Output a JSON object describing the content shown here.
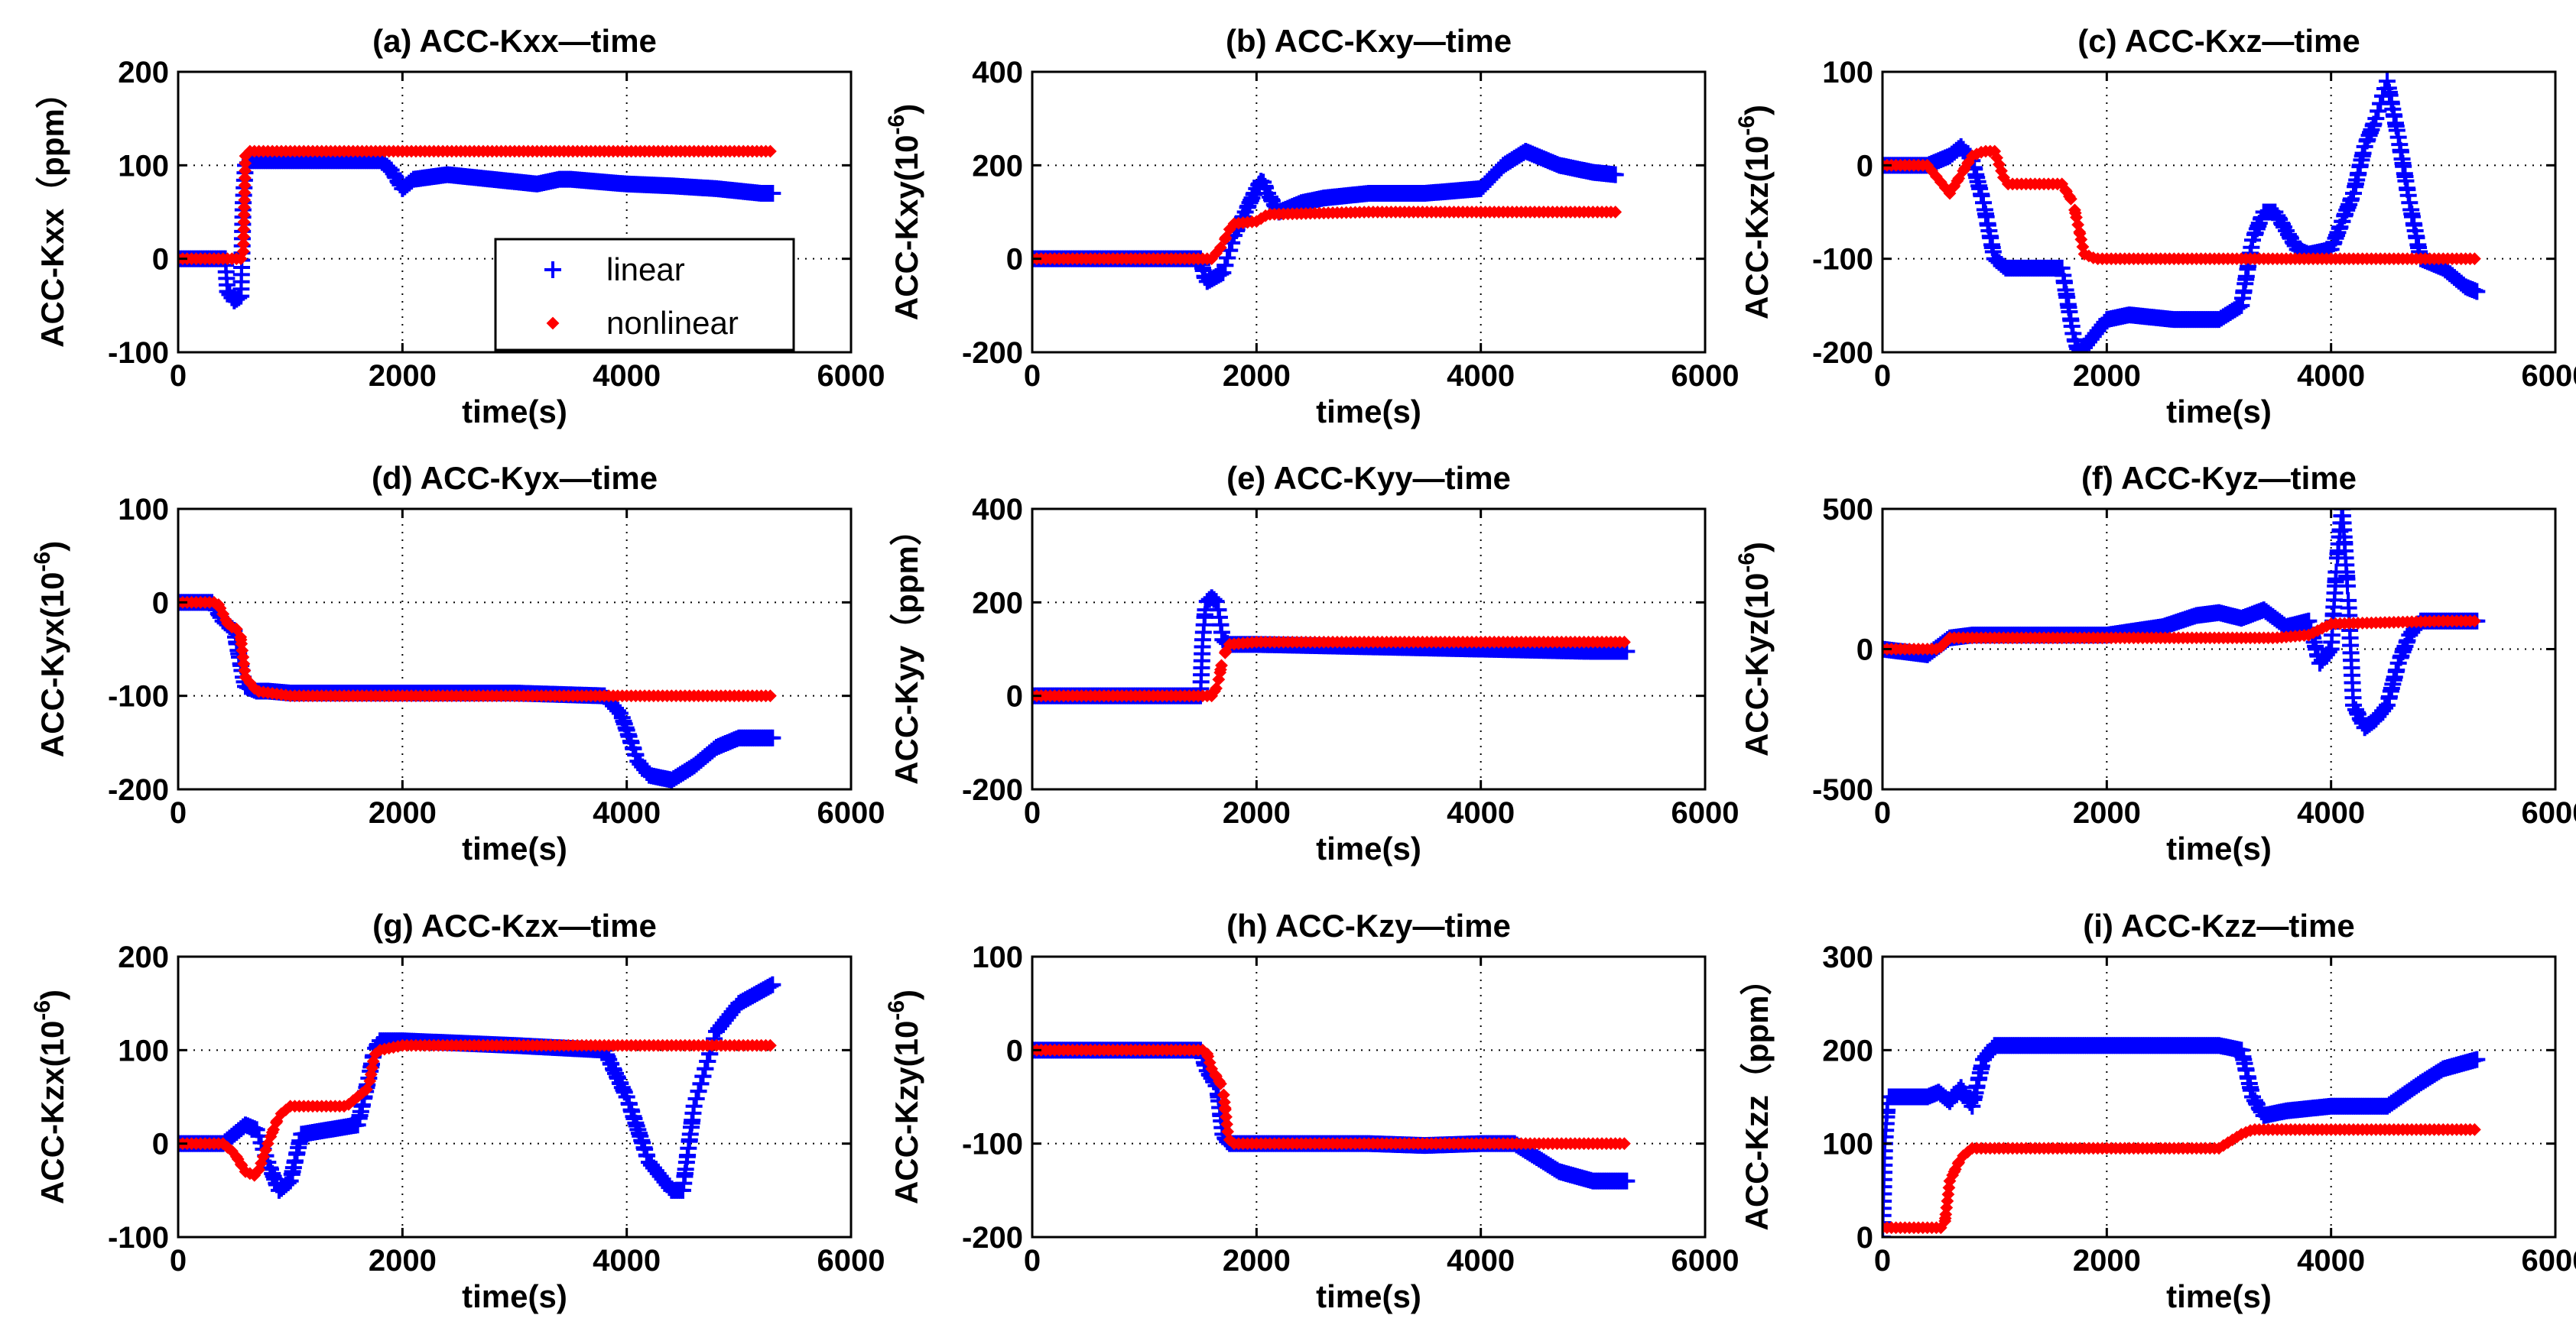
{
  "colors": {
    "linear": "#0000ff",
    "nonlinear": "#ff0000",
    "axis": "#000000",
    "grid": "#000000"
  },
  "legend": {
    "items": [
      "linear",
      "nonlinear"
    ],
    "placement": "inside-lower-right of panel (a)"
  },
  "chart_data": [
    {
      "id": "a",
      "type": "line",
      "title": "(a) ACC-Kxx—time",
      "xlabel": "time(s)",
      "ylabel": "ACC-Kxx（ppm）",
      "xlim": [
        0,
        6000
      ],
      "ylim": [
        -100,
        200
      ],
      "xticks": [
        0,
        2000,
        4000,
        6000
      ],
      "yticks": [
        -100,
        0,
        100,
        200
      ],
      "xtick_labels": [
        "0",
        "2000",
        "4000",
        "6000"
      ],
      "ytick_labels": [
        "-100",
        "0",
        "100",
        "200"
      ],
      "series": [
        {
          "name": "linear",
          "x": [
            0,
            420,
            440,
            500,
            560,
            580,
            600,
            640,
            700,
            900,
            1500,
            1800,
            1900,
            2000,
            2100,
            2400,
            2800,
            3200,
            3400,
            3500,
            3800,
            4000,
            4400,
            4800,
            5200,
            5300
          ],
          "y": [
            0,
            0,
            -35,
            -45,
            -40,
            60,
            100,
            105,
            105,
            105,
            105,
            105,
            95,
            75,
            85,
            90,
            85,
            80,
            85,
            85,
            82,
            80,
            78,
            75,
            70,
            70
          ]
        },
        {
          "name": "nonlinear",
          "x": [
            0,
            500,
            580,
            600,
            640,
            800,
            2000,
            4000,
            5300
          ],
          "y": [
            0,
            0,
            0,
            110,
            115,
            115,
            115,
            115,
            115
          ]
        }
      ]
    },
    {
      "id": "b",
      "type": "line",
      "title": "(b) ACC-Kxy—time",
      "xlabel": "time(s)",
      "ylabel": "ACC-Kxy(10^-6)",
      "ylabel_main": "ACC-Kxy(10",
      "ylabel_exp": "-6",
      "ylabel_close": ")",
      "xlim": [
        0,
        6000
      ],
      "ylim": [
        -200,
        400
      ],
      "xticks": [
        0,
        2000,
        4000,
        6000
      ],
      "yticks": [
        -200,
        0,
        200,
        400
      ],
      "xtick_labels": [
        "0",
        "2000",
        "4000",
        "6000"
      ],
      "ytick_labels": [
        "-200",
        "0",
        "200",
        "400"
      ],
      "series": [
        {
          "name": "linear",
          "x": [
            0,
            1500,
            1550,
            1700,
            1800,
            1900,
            2000,
            2050,
            2100,
            2200,
            2400,
            2600,
            3000,
            3500,
            4000,
            4200,
            4400,
            4500,
            4700,
            5000,
            5200
          ],
          "y": [
            0,
            0,
            -50,
            -30,
            50,
            100,
            150,
            170,
            140,
            100,
            120,
            130,
            140,
            140,
            150,
            200,
            230,
            220,
            200,
            185,
            180
          ]
        },
        {
          "name": "nonlinear",
          "x": [
            0,
            1600,
            1700,
            1750,
            1800,
            2000,
            2100,
            3000,
            4000,
            5200
          ],
          "y": [
            0,
            0,
            30,
            60,
            75,
            80,
            95,
            100,
            100,
            100
          ]
        }
      ]
    },
    {
      "id": "c",
      "type": "line",
      "title": "(c) ACC-Kxz—time",
      "xlabel": "time(s)",
      "ylabel": "ACC-Kxz(10^-6)",
      "ylabel_main": "ACC-Kxz(10",
      "ylabel_exp": "-6",
      "ylabel_close": ")",
      "xlim": [
        0,
        6000
      ],
      "ylim": [
        -200,
        100
      ],
      "xticks": [
        0,
        2000,
        4000,
        6000
      ],
      "yticks": [
        -200,
        -100,
        0,
        100
      ],
      "xtick_labels": [
        "0",
        "2000",
        "4000",
        "6000"
      ],
      "ytick_labels": [
        "-200",
        "-100",
        "0",
        "100"
      ],
      "series": [
        {
          "name": "linear",
          "x": [
            0,
            400,
            600,
            700,
            800,
            900,
            1000,
            1100,
            1300,
            1600,
            1700,
            1750,
            1800,
            1900,
            2000,
            2200,
            2600,
            3000,
            3200,
            3300,
            3400,
            3500,
            3600,
            3700,
            3800,
            4000,
            4200,
            4300,
            4400,
            4500,
            4600,
            4700,
            4800,
            5000,
            5200,
            5300
          ],
          "y": [
            0,
            0,
            10,
            20,
            5,
            -40,
            -100,
            -110,
            -110,
            -110,
            -180,
            -200,
            -195,
            -180,
            -165,
            -160,
            -165,
            -165,
            -150,
            -80,
            -50,
            -50,
            -70,
            -90,
            -95,
            -90,
            -30,
            20,
            50,
            90,
            30,
            -40,
            -100,
            -110,
            -130,
            -135
          ]
        },
        {
          "name": "nonlinear",
          "x": [
            0,
            400,
            500,
            600,
            700,
            800,
            900,
            1000,
            1100,
            1600,
            1700,
            1800,
            1900,
            2000,
            3000,
            4000,
            5000,
            5300
          ],
          "y": [
            0,
            0,
            -15,
            -30,
            -10,
            10,
            15,
            15,
            -20,
            -20,
            -40,
            -95,
            -100,
            -100,
            -100,
            -100,
            -100,
            -100
          ]
        }
      ]
    },
    {
      "id": "d",
      "type": "line",
      "title": "(d) ACC-Kyx—time",
      "xlabel": "time(s)",
      "ylabel": "ACC-Kyx(10^-6)",
      "ylabel_main": "ACC-Kyx(10",
      "ylabel_exp": "-6",
      "ylabel_close": ")",
      "xlim": [
        0,
        6000
      ],
      "ylim": [
        -200,
        100
      ],
      "xticks": [
        0,
        2000,
        4000,
        6000
      ],
      "yticks": [
        -200,
        -100,
        0,
        100
      ],
      "xtick_labels": [
        "0",
        "2000",
        "4000",
        "6000"
      ],
      "ytick_labels": [
        "-200",
        "-100",
        "0",
        "100"
      ],
      "series": [
        {
          "name": "linear",
          "x": [
            0,
            300,
            400,
            500,
            580,
            600,
            700,
            800,
            1000,
            2000,
            3000,
            3800,
            3950,
            4100,
            4200,
            4400,
            4600,
            4800,
            5000,
            5300
          ],
          "y": [
            0,
            0,
            -20,
            -30,
            -80,
            -90,
            -95,
            -95,
            -97,
            -97,
            -97,
            -100,
            -120,
            -170,
            -185,
            -190,
            -175,
            -155,
            -145,
            -145
          ]
        },
        {
          "name": "nonlinear",
          "x": [
            0,
            350,
            450,
            550,
            600,
            700,
            1000,
            3000,
            5300
          ],
          "y": [
            0,
            0,
            -25,
            -30,
            -80,
            -95,
            -100,
            -100,
            -100
          ]
        }
      ]
    },
    {
      "id": "e",
      "type": "line",
      "title": "(e) ACC-Kyy—time",
      "xlabel": "time(s)",
      "ylabel": "ACC-Kyy（ppm）",
      "xlim": [
        0,
        6000
      ],
      "ylim": [
        -200,
        400
      ],
      "xticks": [
        0,
        2000,
        4000,
        6000
      ],
      "yticks": [
        -200,
        0,
        200,
        400
      ],
      "xtick_labels": [
        "0",
        "2000",
        "4000",
        "6000"
      ],
      "ytick_labels": [
        "-200",
        "0",
        "200",
        "400"
      ],
      "series": [
        {
          "name": "linear",
          "x": [
            0,
            1500,
            1520,
            1550,
            1600,
            1650,
            1700,
            1750,
            1800,
            2000,
            3000,
            4000,
            5000,
            5300
          ],
          "y": [
            0,
            0,
            120,
            200,
            210,
            200,
            120,
            110,
            110,
            110,
            105,
            100,
            95,
            95
          ]
        },
        {
          "name": "nonlinear",
          "x": [
            0,
            1600,
            1650,
            1700,
            1750,
            2000,
            5300
          ],
          "y": [
            0,
            0,
            20,
            80,
            110,
            115,
            115
          ]
        }
      ]
    },
    {
      "id": "f",
      "type": "line",
      "title": "(f) ACC-Kyz—time",
      "xlabel": "time(s)",
      "ylabel": "ACC-Kyz(10^-6)",
      "ylabel_main": "ACC-Kyz(10",
      "ylabel_exp": "-6",
      "ylabel_close": ")",
      "xlim": [
        0,
        6000
      ],
      "ylim": [
        -500,
        500
      ],
      "xticks": [
        0,
        2000,
        4000,
        6000
      ],
      "yticks": [
        -500,
        0,
        500
      ],
      "xtick_labels": [
        "0",
        "2000",
        "4000",
        "6000"
      ],
      "ytick_labels": [
        "-500",
        "0",
        "500"
      ],
      "series": [
        {
          "name": "linear",
          "x": [
            0,
            400,
            600,
            800,
            1000,
            2000,
            2500,
            2800,
            3000,
            3200,
            3400,
            3600,
            3800,
            3900,
            4000,
            4050,
            4100,
            4150,
            4200,
            4300,
            4400,
            4500,
            4600,
            4700,
            4800,
            5000,
            5300
          ],
          "y": [
            0,
            -20,
            40,
            50,
            50,
            50,
            80,
            120,
            130,
            110,
            140,
            80,
            100,
            -50,
            0,
            300,
            500,
            200,
            -200,
            -280,
            -250,
            -200,
            -50,
            50,
            100,
            100,
            100
          ]
        },
        {
          "name": "nonlinear",
          "x": [
            0,
            300,
            500,
            600,
            1000,
            2000,
            3000,
            3500,
            3800,
            3900,
            4000,
            4500,
            5000,
            5300
          ],
          "y": [
            0,
            0,
            0,
            40,
            40,
            40,
            40,
            40,
            50,
            70,
            90,
            95,
            100,
            100
          ]
        }
      ]
    },
    {
      "id": "g",
      "type": "line",
      "title": "(g) ACC-Kzx—time",
      "xlabel": "time(s)",
      "ylabel": "ACC-Kzx(10^-6)",
      "ylabel_main": "ACC-Kzx(10",
      "ylabel_exp": "-6",
      "ylabel_close": ")",
      "xlim": [
        0,
        6000
      ],
      "ylim": [
        -100,
        200
      ],
      "xticks": [
        0,
        2000,
        4000,
        6000
      ],
      "yticks": [
        -100,
        0,
        100,
        200
      ],
      "xtick_labels": [
        "0",
        "2000",
        "4000",
        "6000"
      ],
      "ytick_labels": [
        "-100",
        "0",
        "100",
        "200"
      ],
      "series": [
        {
          "name": "linear",
          "x": [
            0,
            400,
            500,
            600,
            700,
            800,
            900,
            1000,
            1100,
            1600,
            1700,
            1750,
            1800,
            2000,
            3000,
            3800,
            4000,
            4200,
            4400,
            4500,
            4600,
            4800,
            5000,
            5300
          ],
          "y": [
            0,
            0,
            10,
            20,
            15,
            -20,
            -50,
            -40,
            10,
            20,
            70,
            100,
            110,
            110,
            105,
            100,
            50,
            -20,
            -50,
            -50,
            40,
            120,
            150,
            170
          ]
        },
        {
          "name": "nonlinear",
          "x": [
            0,
            400,
            500,
            600,
            700,
            800,
            900,
            1000,
            1500,
            1700,
            1750,
            1800,
            2000,
            3000,
            4000,
            5300
          ],
          "y": [
            0,
            0,
            -10,
            -30,
            -35,
            0,
            30,
            40,
            40,
            60,
            95,
            100,
            105,
            105,
            105,
            105
          ]
        }
      ]
    },
    {
      "id": "h",
      "type": "line",
      "title": "(h) ACC-Kzy—time",
      "xlabel": "time(s)",
      "ylabel": "ACC-Kzy(10^-6)",
      "ylabel_main": "ACC-Kzy(10",
      "ylabel_exp": "-6",
      "ylabel_close": ")",
      "xlim": [
        0,
        6000
      ],
      "ylim": [
        -200,
        100
      ],
      "xticks": [
        0,
        2000,
        4000,
        6000
      ],
      "yticks": [
        -200,
        -100,
        0,
        100
      ],
      "xtick_labels": [
        "0",
        "2000",
        "4000",
        "6000"
      ],
      "ytick_labels": [
        "-200",
        "-100",
        "0",
        "100"
      ],
      "series": [
        {
          "name": "linear",
          "x": [
            0,
            1500,
            1550,
            1650,
            1700,
            1750,
            2000,
            3000,
            3500,
            4000,
            4300,
            4500,
            4700,
            5000,
            5300
          ],
          "y": [
            0,
            0,
            -20,
            -40,
            -90,
            -100,
            -100,
            -100,
            -102,
            -100,
            -100,
            -115,
            -130,
            -140,
            -140
          ]
        },
        {
          "name": "nonlinear",
          "x": [
            0,
            1550,
            1600,
            1700,
            1750,
            1800,
            3000,
            5300
          ],
          "y": [
            0,
            0,
            -20,
            -40,
            -95,
            -100,
            -100,
            -100
          ]
        }
      ]
    },
    {
      "id": "i",
      "type": "line",
      "title": "(i) ACC-Kzz—time",
      "xlabel": "time(s)",
      "ylabel": "ACC-Kzz（ppm）",
      "xlim": [
        0,
        6000
      ],
      "ylim": [
        0,
        300
      ],
      "xticks": [
        0,
        2000,
        4000,
        6000
      ],
      "yticks": [
        0,
        100,
        200,
        300
      ],
      "xtick_labels": [
        "0",
        "2000",
        "4000",
        "6000"
      ],
      "ytick_labels": [
        "0",
        "100",
        "200",
        "300"
      ],
      "series": [
        {
          "name": "linear",
          "x": [
            0,
            20,
            50,
            100,
            400,
            500,
            600,
            700,
            800,
            900,
            1000,
            1500,
            2000,
            2500,
            3000,
            3200,
            3300,
            3400,
            3600,
            4000,
            4500,
            4800,
            5000,
            5300
          ],
          "y": [
            0,
            100,
            150,
            150,
            150,
            155,
            145,
            160,
            140,
            190,
            205,
            205,
            205,
            205,
            205,
            200,
            150,
            130,
            135,
            140,
            140,
            165,
            180,
            190
          ]
        },
        {
          "name": "nonlinear",
          "x": [
            0,
            550,
            600,
            700,
            800,
            1000,
            2000,
            3000,
            3200,
            3300,
            4000,
            5000,
            5300
          ],
          "y": [
            10,
            10,
            60,
            85,
            95,
            95,
            95,
            95,
            110,
            115,
            115,
            115,
            115
          ]
        }
      ]
    }
  ]
}
